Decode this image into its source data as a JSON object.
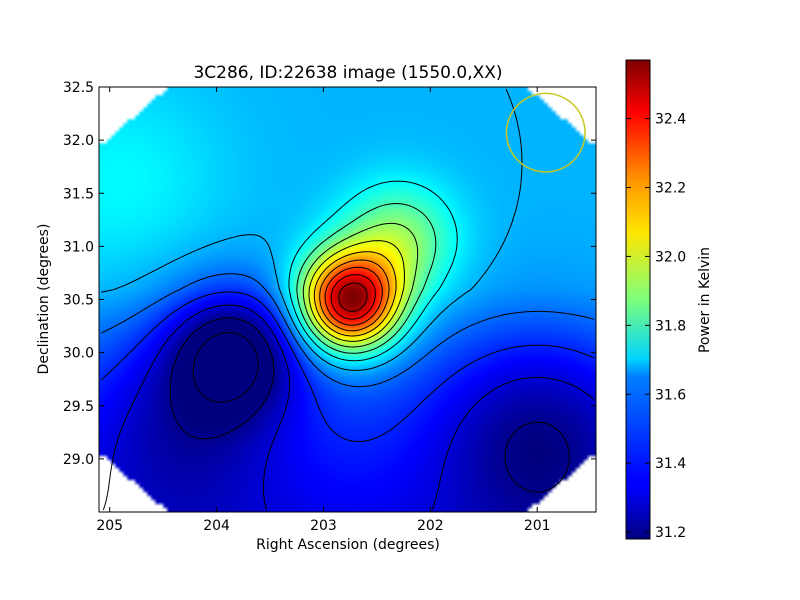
{
  "chart_data": {
    "type": "heatmap",
    "title": "3C286, ID:22638 image (1550.0,XX)",
    "xlabel": "Right Ascension (degrees)",
    "ylabel": "Declination (degrees)",
    "xlim": [
      205.1,
      200.45
    ],
    "ylim": [
      28.5,
      32.5
    ],
    "xticks": [
      205,
      204,
      203,
      202,
      201
    ],
    "xtick_labels": [
      "205",
      "204",
      "203",
      "202",
      "201"
    ],
    "yticks": [
      29.0,
      29.5,
      30.0,
      30.5,
      31.0,
      31.5,
      32.0,
      32.5
    ],
    "ytick_labels": [
      "29.0",
      "29.5",
      "30.0",
      "30.5",
      "31.0",
      "31.5",
      "32.0",
      "32.5"
    ],
    "colorbar": {
      "label": "Power in Kelvin",
      "colormap": "jet",
      "range": [
        31.18,
        32.57
      ],
      "ticks": [
        31.2,
        31.4,
        31.6,
        31.8,
        32.0,
        32.2,
        32.4
      ],
      "tick_labels": [
        "31.2",
        "31.4",
        "31.6",
        "31.8",
        "32.0",
        "32.2",
        "32.4"
      ]
    },
    "background_level": 31.6,
    "features": [
      {
        "kind": "peak",
        "ra": 202.75,
        "dec": 30.48,
        "value": 32.55
      },
      {
        "kind": "extension",
        "ra": 202.3,
        "dec": 31.05,
        "value": 31.9
      },
      {
        "kind": "minimum",
        "ra": 203.85,
        "dec": 30.02,
        "value": 31.2
      },
      {
        "kind": "low-region",
        "ra": 201.0,
        "dec": 29.3,
        "value": 31.35
      },
      {
        "kind": "low-region",
        "ra": 204.3,
        "dec": 29.4,
        "value": 31.4
      },
      {
        "kind": "high-region",
        "ra": 204.9,
        "dec": 31.6,
        "value": 31.7
      }
    ],
    "contour_interval": 0.1,
    "beam_circle": {
      "ra": 200.92,
      "dec": 32.07,
      "radius_deg": 0.37,
      "color": "#c8c820"
    },
    "contour_color": "#000000"
  }
}
